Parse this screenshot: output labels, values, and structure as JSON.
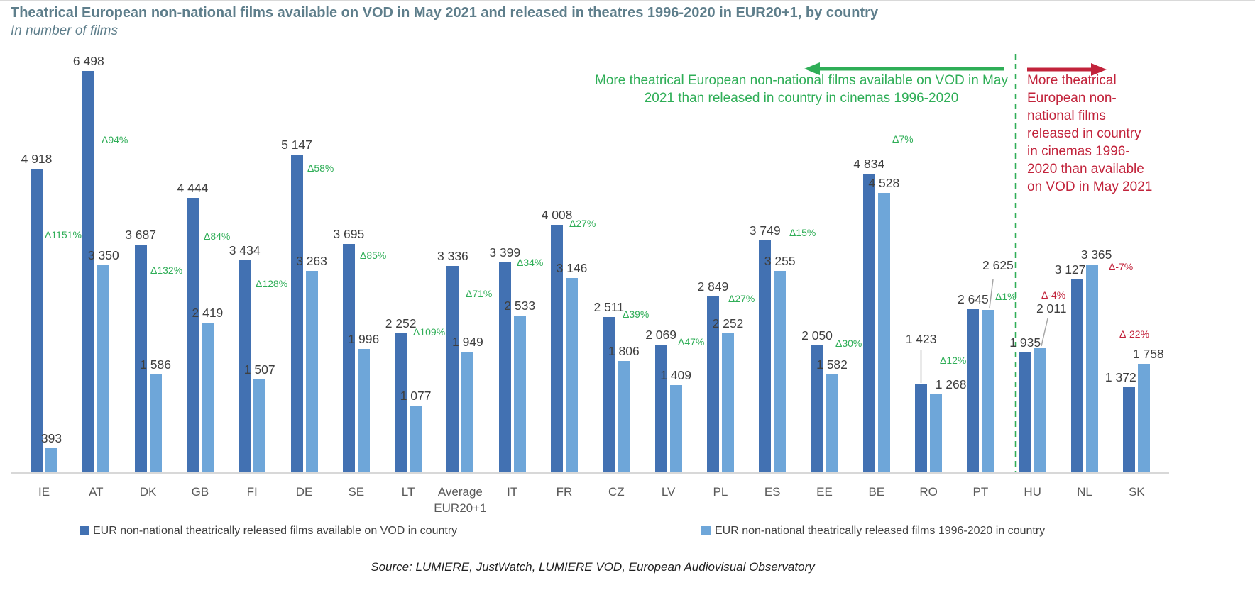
{
  "chart_data": {
    "type": "bar",
    "title": "Theatrical European non-national films available on VOD in May 2021 and released in theatres 1996-2020 in EUR20+1, by country",
    "subtitle": "In number of films",
    "categories": [
      "IE",
      "AT",
      "DK",
      "GB",
      "FI",
      "DE",
      "SE",
      "LT",
      "Average EUR20+1",
      "IT",
      "FR",
      "CZ",
      "LV",
      "PL",
      "ES",
      "EE",
      "BE",
      "RO",
      "PT",
      "HU",
      "NL",
      "SK"
    ],
    "series": [
      {
        "name": "EUR non-national theatrically released films available on VOD in country",
        "color": "#4271b2",
        "values": [
          4918,
          6498,
          3687,
          4444,
          3434,
          5147,
          3695,
          2252,
          3336,
          3399,
          4008,
          2511,
          2069,
          2849,
          3749,
          2050,
          4834,
          1423,
          2645,
          1935,
          3127,
          1372
        ]
      },
      {
        "name": "EUR non-national theatrically released films 1996-2020 in country",
        "color": "#6ea6d9",
        "values": [
          393,
          3350,
          1586,
          2419,
          1507,
          3263,
          1996,
          1077,
          1949,
          2533,
          3146,
          1806,
          1409,
          2252,
          3255,
          1582,
          4528,
          1268,
          2625,
          2011,
          3365,
          1758
        ]
      }
    ],
    "delta_percent": [
      1151,
      94,
      132,
      84,
      128,
      58,
      85,
      109,
      71,
      34,
      27,
      39,
      47,
      27,
      15,
      30,
      7,
      12,
      1,
      -4,
      -7,
      -22
    ],
    "delta_label_prefix": "Δ",
    "ylim": [
      0,
      6498
    ],
    "grid": false,
    "legend_position": "bottom",
    "colors": {
      "positive_delta": "#2fae57",
      "negative_delta": "#c2233b",
      "axis_line": "#d8d8d8",
      "value_label": "#3f3f3f",
      "axis_label": "#595959",
      "title": "#5e7e8b",
      "divider": "#2fae57",
      "leader_line": "#a6a6a6"
    },
    "annotations": {
      "green_note": {
        "text": "More theatrical European non-national films available on VOD in May 2021 than released in country in cinemas 1996-2020",
        "arrow": "left",
        "color": "#2fae57"
      },
      "red_note": {
        "text": "More theatrical European non-national films released in country in cinemas 1996-2020 than available on VOD in May 2021",
        "arrow": "right",
        "color": "#c2233b"
      },
      "divider_after": "PT"
    },
    "source": "Source: LUMIERE, JustWatch, LUMIERE VOD, European Audiovisual Observatory"
  }
}
